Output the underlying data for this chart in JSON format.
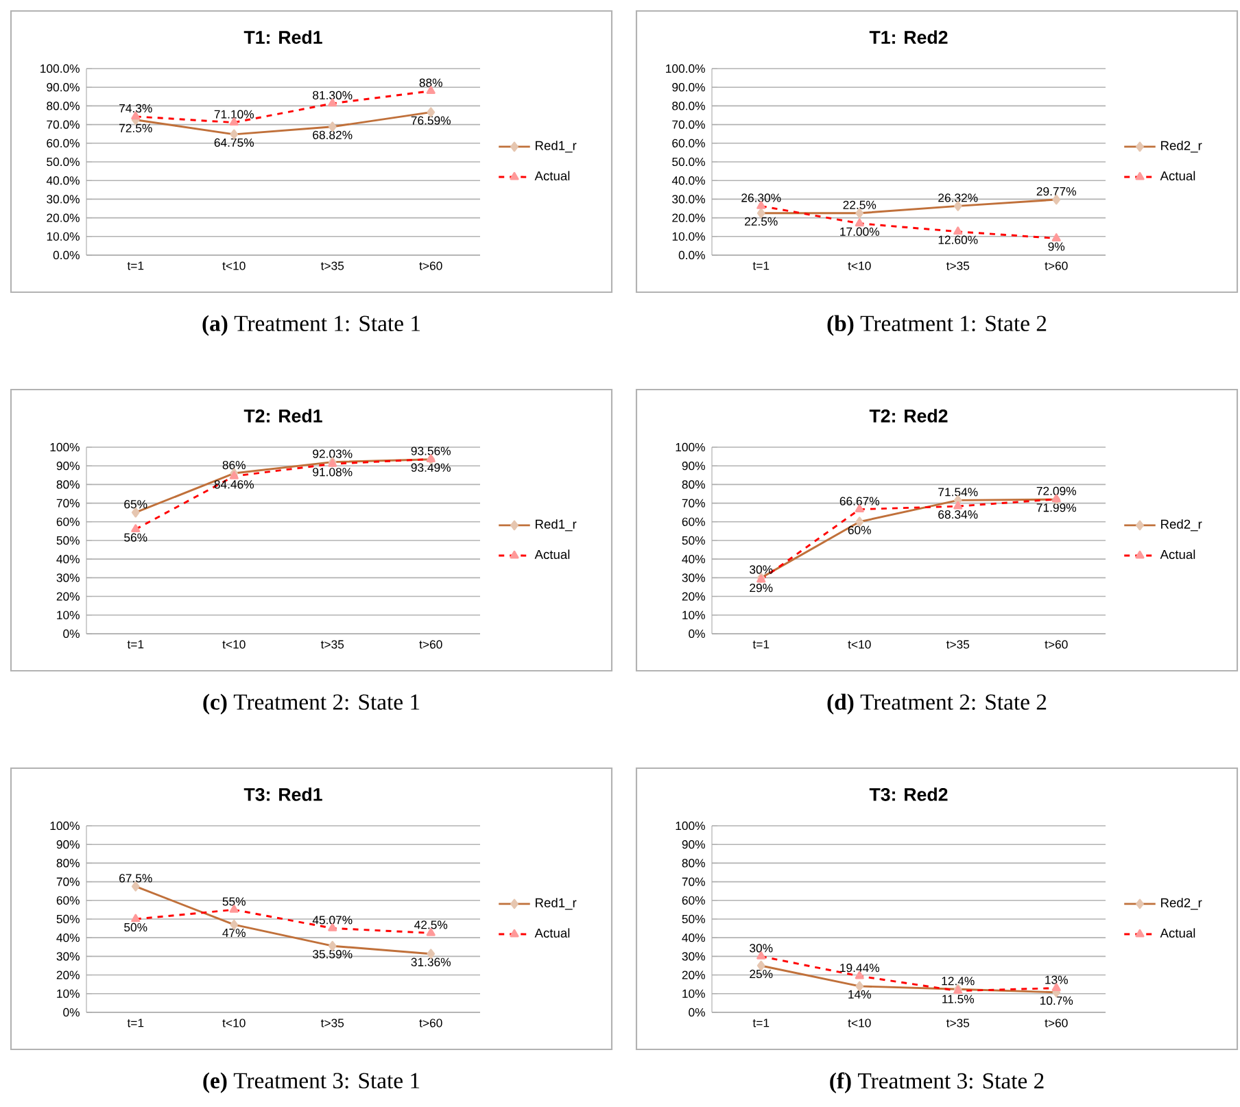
{
  "chart_data": [
    {
      "type": "line",
      "title": "T1: Red1",
      "categories": [
        "t=1",
        "t<10",
        "t>35",
        "t>60"
      ],
      "ylim": [
        0,
        100
      ],
      "yticks": [
        {
          "value": 0,
          "label": "0.0%"
        },
        {
          "value": 10,
          "label": "10.0%"
        },
        {
          "value": 20,
          "label": "20.0%"
        },
        {
          "value": 30,
          "label": "30.0%"
        },
        {
          "value": 40,
          "label": "40.0%"
        },
        {
          "value": 50,
          "label": "50.0%"
        },
        {
          "value": 60,
          "label": "60.0%"
        },
        {
          "value": 70,
          "label": "70.0%"
        },
        {
          "value": 80,
          "label": "80.0%"
        },
        {
          "value": 90,
          "label": "90.0%"
        },
        {
          "value": 100,
          "label": "100.0%"
        }
      ],
      "grid": "y",
      "legend": "right",
      "annotations": [
        "**(a)** Treatment 1: State 1"
      ],
      "series": [
        {
          "name": "Red1_r",
          "color": "#c0703a",
          "marker": "diamond",
          "line_style": "solid",
          "values": [
            72.5,
            64.75,
            68.82,
            76.59
          ],
          "value_labels": [
            "72.5%",
            "64.75%",
            "68.82%",
            "76.59%"
          ]
        },
        {
          "name": "Actual",
          "color": "#ff0000",
          "marker": "triangle",
          "line_style": "dashed",
          "values": [
            74.3,
            71.1,
            81.3,
            88
          ],
          "value_labels": [
            "74.3%",
            "71.10%",
            "81.30%",
            "88%"
          ]
        }
      ]
    },
    {
      "type": "line",
      "title": "T1: Red2",
      "categories": [
        "t=1",
        "t<10",
        "t>35",
        "t>60"
      ],
      "ylim": [
        0,
        100
      ],
      "yticks": [
        {
          "value": 0,
          "label": "0.0%"
        },
        {
          "value": 10,
          "label": "10.0%"
        },
        {
          "value": 20,
          "label": "20.0%"
        },
        {
          "value": 30,
          "label": "30.0%"
        },
        {
          "value": 40,
          "label": "40.0%"
        },
        {
          "value": 50,
          "label": "50.0%"
        },
        {
          "value": 60,
          "label": "60.0%"
        },
        {
          "value": 70,
          "label": "70.0%"
        },
        {
          "value": 80,
          "label": "80.0%"
        },
        {
          "value": 90,
          "label": "90.0%"
        },
        {
          "value": 100,
          "label": "100.0%"
        }
      ],
      "grid": "y",
      "legend": "right",
      "annotations": [
        "**(b)** Treatment 1: State 2"
      ],
      "series": [
        {
          "name": "Red2_r",
          "color": "#c0703a",
          "marker": "diamond",
          "line_style": "solid",
          "values": [
            22.5,
            22.5,
            26.32,
            29.77
          ],
          "value_labels": [
            "22.5%",
            "22.5%",
            "26.32%",
            "29.77%"
          ]
        },
        {
          "name": "Actual",
          "color": "#ff0000",
          "marker": "triangle",
          "line_style": "dashed",
          "values": [
            26.3,
            17,
            12.6,
            9
          ],
          "value_labels": [
            "26.30%",
            "17.00%",
            "12.60%",
            "9%"
          ]
        }
      ]
    },
    {
      "type": "line",
      "title": "T2: Red1",
      "categories": [
        "t=1",
        "t<10",
        "t>35",
        "t>60"
      ],
      "ylim": [
        0,
        100
      ],
      "yticks": [
        {
          "value": 0,
          "label": "0%"
        },
        {
          "value": 10,
          "label": "10%"
        },
        {
          "value": 20,
          "label": "20%"
        },
        {
          "value": 30,
          "label": "30%"
        },
        {
          "value": 40,
          "label": "40%"
        },
        {
          "value": 50,
          "label": "50%"
        },
        {
          "value": 60,
          "label": "60%"
        },
        {
          "value": 70,
          "label": "70%"
        },
        {
          "value": 80,
          "label": "80%"
        },
        {
          "value": 90,
          "label": "90%"
        },
        {
          "value": 100,
          "label": "100%"
        }
      ],
      "grid": "y",
      "legend": "right",
      "annotations": [
        "**(c)** Treatment 2: State 1"
      ],
      "series": [
        {
          "name": "Red1_r",
          "color": "#c0703a",
          "marker": "diamond",
          "line_style": "solid",
          "values": [
            65,
            86,
            92.03,
            93.49
          ],
          "value_labels": [
            "65%",
            "86%",
            "92.03%",
            "93.49%"
          ]
        },
        {
          "name": "Actual",
          "color": "#ff0000",
          "marker": "triangle",
          "line_style": "dashed",
          "values": [
            56,
            84.46,
            91.08,
            93.56
          ],
          "value_labels": [
            "56%",
            "84.46%",
            "91.08%",
            "93.56%"
          ]
        }
      ]
    },
    {
      "type": "line",
      "title": "T2: Red2",
      "categories": [
        "t=1",
        "t<10",
        "t>35",
        "t>60"
      ],
      "ylim": [
        0,
        100
      ],
      "yticks": [
        {
          "value": 0,
          "label": "0%"
        },
        {
          "value": 10,
          "label": "10%"
        },
        {
          "value": 20,
          "label": "20%"
        },
        {
          "value": 30,
          "label": "30%"
        },
        {
          "value": 40,
          "label": "40%"
        },
        {
          "value": 50,
          "label": "50%"
        },
        {
          "value": 60,
          "label": "60%"
        },
        {
          "value": 70,
          "label": "70%"
        },
        {
          "value": 80,
          "label": "80%"
        },
        {
          "value": 90,
          "label": "90%"
        },
        {
          "value": 100,
          "label": "100%"
        }
      ],
      "grid": "y",
      "legend": "right",
      "annotations": [
        "**(d)** Treatment 2: State 2"
      ],
      "series": [
        {
          "name": "Red2_r",
          "color": "#c0703a",
          "marker": "diamond",
          "line_style": "solid",
          "values": [
            30,
            60,
            71.54,
            71.99
          ],
          "value_labels": [
            "30%",
            "60%",
            "71.54%",
            "71.99%"
          ]
        },
        {
          "name": "Actual",
          "color": "#ff0000",
          "marker": "triangle",
          "line_style": "dashed",
          "values": [
            29,
            66.67,
            68.34,
            72.09
          ],
          "value_labels": [
            "29%",
            "66.67%",
            "68.34%",
            "72.09%"
          ]
        }
      ]
    },
    {
      "type": "line",
      "title": "T3: Red1",
      "categories": [
        "t=1",
        "t<10",
        "t>35",
        "t>60"
      ],
      "ylim": [
        0,
        100
      ],
      "yticks": [
        {
          "value": 0,
          "label": "0%"
        },
        {
          "value": 10,
          "label": "10%"
        },
        {
          "value": 20,
          "label": "20%"
        },
        {
          "value": 30,
          "label": "30%"
        },
        {
          "value": 40,
          "label": "40%"
        },
        {
          "value": 50,
          "label": "50%"
        },
        {
          "value": 60,
          "label": "60%"
        },
        {
          "value": 70,
          "label": "70%"
        },
        {
          "value": 80,
          "label": "80%"
        },
        {
          "value": 90,
          "label": "90%"
        },
        {
          "value": 100,
          "label": "100%"
        }
      ],
      "grid": "y",
      "legend": "right",
      "annotations": [
        "**(e)** Treatment 3: State 1"
      ],
      "series": [
        {
          "name": "Red1_r",
          "color": "#c0703a",
          "marker": "diamond",
          "line_style": "solid",
          "values": [
            67.5,
            47,
            35.59,
            31.36
          ],
          "value_labels": [
            "67.5%",
            "47%",
            "35.59%",
            "31.36%"
          ]
        },
        {
          "name": "Actual",
          "color": "#ff0000",
          "marker": "triangle",
          "line_style": "dashed",
          "values": [
            50,
            55,
            45.07,
            42.5
          ],
          "value_labels": [
            "50%",
            "55%",
            "45.07%",
            "42.5%"
          ]
        }
      ]
    },
    {
      "type": "line",
      "title": "T3: Red2",
      "categories": [
        "t=1",
        "t<10",
        "t>35",
        "t>60"
      ],
      "ylim": [
        0,
        100
      ],
      "yticks": [
        {
          "value": 0,
          "label": "0%"
        },
        {
          "value": 10,
          "label": "10%"
        },
        {
          "value": 20,
          "label": "20%"
        },
        {
          "value": 30,
          "label": "30%"
        },
        {
          "value": 40,
          "label": "40%"
        },
        {
          "value": 50,
          "label": "50%"
        },
        {
          "value": 60,
          "label": "60%"
        },
        {
          "value": 70,
          "label": "70%"
        },
        {
          "value": 80,
          "label": "80%"
        },
        {
          "value": 90,
          "label": "90%"
        },
        {
          "value": 100,
          "label": "100%"
        }
      ],
      "grid": "y",
      "legend": "right",
      "annotations": [
        "**(f)** Treatment 3: State 2"
      ],
      "series": [
        {
          "name": "Red2_r",
          "color": "#c0703a",
          "marker": "diamond",
          "line_style": "solid",
          "values": [
            25,
            14,
            12.4,
            10.7
          ],
          "value_labels": [
            "25%",
            "14%",
            "12.4%",
            "10.7%"
          ]
        },
        {
          "name": "Actual",
          "color": "#ff0000",
          "marker": "triangle",
          "line_style": "dashed",
          "values": [
            30,
            19.44,
            11.5,
            13
          ],
          "value_labels": [
            "30%",
            "19.44%",
            "11.5%",
            "13%"
          ]
        }
      ]
    }
  ]
}
